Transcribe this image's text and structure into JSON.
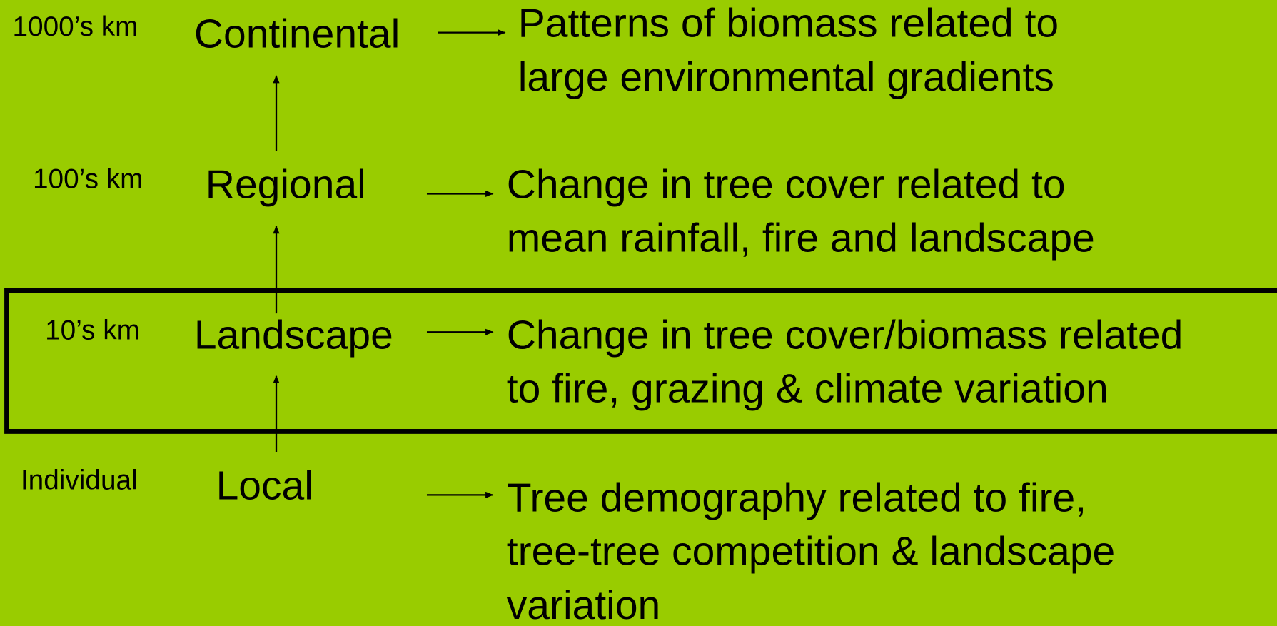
{
  "rows": [
    {
      "scale": "1000’s km",
      "level": "Continental",
      "description": [
        "Patterns of biomass related to",
        "large environmental gradients"
      ]
    },
    {
      "scale": "100’s km",
      "level": "Regional",
      "description": [
        "Change in tree cover related to",
        "mean rainfall, fire and landscape"
      ]
    },
    {
      "scale": "10’s km",
      "level": "Landscape",
      "description": [
        "Change in tree cover/biomass related",
        "to fire, grazing & climate variation"
      ]
    },
    {
      "scale": "Individual",
      "level": "Local",
      "description": [
        "Tree demography related to fire,",
        "tree-tree competition & landscape",
        "variation"
      ]
    }
  ]
}
